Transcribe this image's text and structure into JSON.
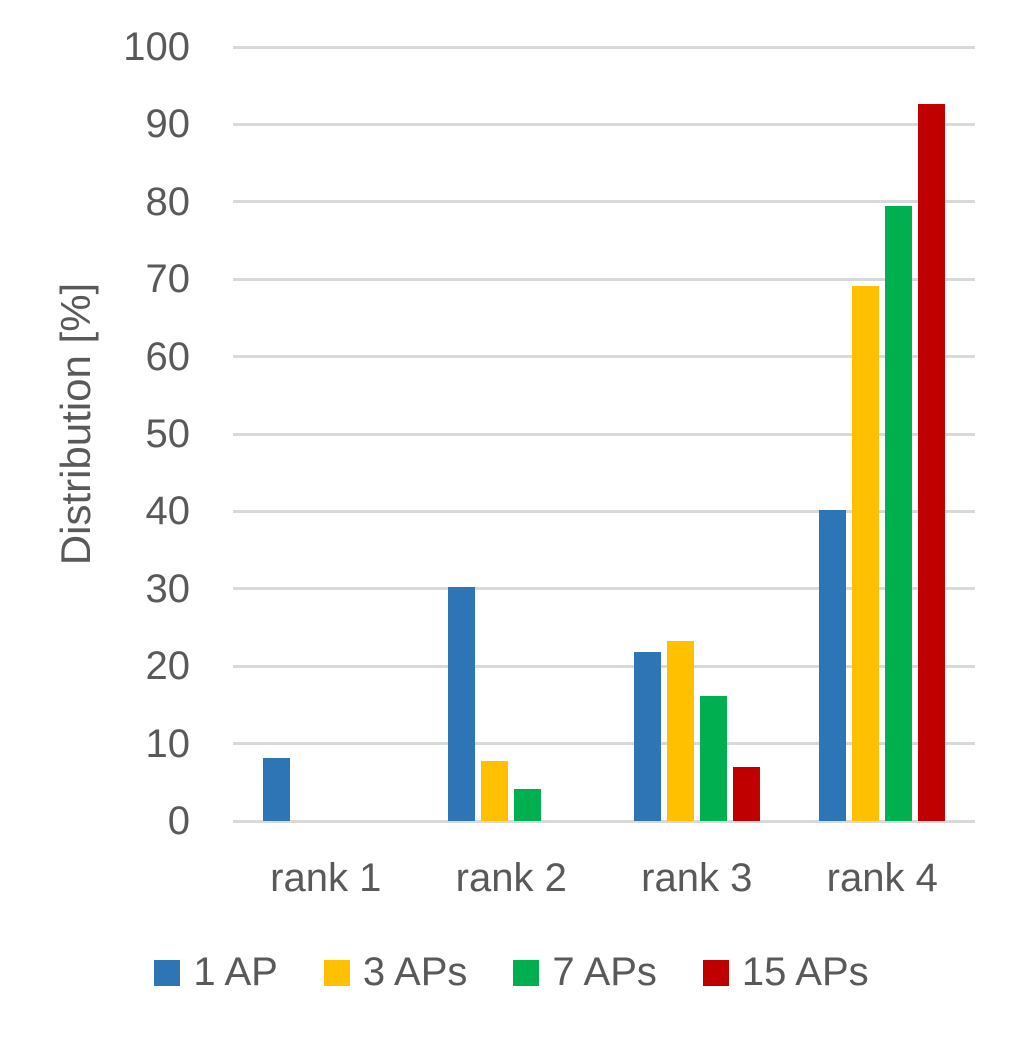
{
  "chart_data": {
    "type": "bar",
    "title": "",
    "xlabel": "",
    "ylabel": "Distribution [%]",
    "categories": [
      "rank 1",
      "rank 2",
      "rank 3",
      "rank 4"
    ],
    "series": [
      {
        "name": "1 AP",
        "color": "#2E75B6",
        "values": [
          8.2,
          30.2,
          21.8,
          40.2
        ]
      },
      {
        "name": "3 APs",
        "color": "#FFC000",
        "values": [
          0,
          7.7,
          23.3,
          69.1
        ]
      },
      {
        "name": "7 APs",
        "color": "#00B050",
        "values": [
          0,
          4.2,
          16.1,
          79.4
        ]
      },
      {
        "name": "15 APs",
        "color": "#C00000",
        "values": [
          0,
          0,
          7.0,
          92.7
        ]
      }
    ],
    "ylim": [
      0,
      100
    ],
    "yticks": [
      0,
      10,
      20,
      30,
      40,
      50,
      60,
      70,
      80,
      90,
      100
    ],
    "grid": "horizontal",
    "grid_color": "#D9D9D9",
    "text_color": "#595959",
    "legend_position": "bottom"
  }
}
